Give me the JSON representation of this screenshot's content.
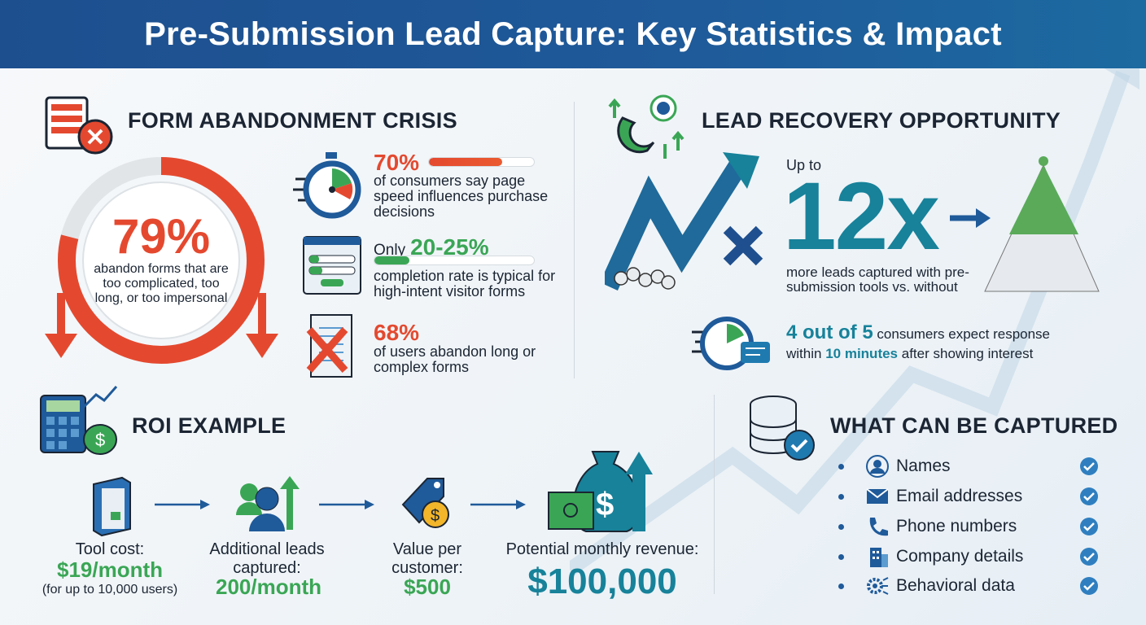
{
  "header": {
    "title": "Pre-Submission Lead Capture: Key Statistics & Impact"
  },
  "abandonment": {
    "title": "FORM ABANDONMENT CRISIS",
    "ring": {
      "value": "79%",
      "percent": 79,
      "text": "abandon forms that are too complicated, too long, or too impersonal"
    },
    "stats": [
      {
        "value": "70%",
        "percent": 70,
        "text": "of consumers say page speed influences purchase decisions",
        "icon": "stopwatch-icon"
      },
      {
        "prefix": "Only",
        "value": "20-25%",
        "percent": 22,
        "text": "completion rate is typical for high-intent visitor forms",
        "icon": "web-form-icon"
      },
      {
        "value": "68%",
        "text": "of users abandon long or complex forms",
        "icon": "crossed-document-icon"
      }
    ]
  },
  "recovery": {
    "title": "LEAD RECOVERY OPPORTUNITY",
    "up_to": "Up to",
    "multiplier": "12x",
    "text": "more leads captured with pre-submission tools vs. without",
    "response_value": "4 out of 5",
    "response_text_1": "consumers expect response",
    "response_text_2a": "within",
    "response_highlight": "10 minutes",
    "response_text_2b": "after showing interest"
  },
  "roi": {
    "title": "ROI EXAMPLE",
    "steps": [
      {
        "label": "Tool cost:",
        "value": "$19/month",
        "note": "(for up to 10,000 users)"
      },
      {
        "label": "Additional leads captured:",
        "value": "200/month"
      },
      {
        "label": "Value per customer:",
        "value": "$500"
      },
      {
        "label": "Potential monthly revenue:",
        "value": "$100,000"
      }
    ]
  },
  "capture": {
    "title": "WHAT CAN BE CAPTURED",
    "items": [
      {
        "label": "Names",
        "icon": "person-icon"
      },
      {
        "label": "Email addresses",
        "icon": "envelope-icon"
      },
      {
        "label": "Phone numbers",
        "icon": "phone-icon"
      },
      {
        "label": "Company details",
        "icon": "building-icon"
      },
      {
        "label": "Behavioral data",
        "icon": "gear-network-icon"
      }
    ]
  },
  "colors": {
    "header": "#1d4f8e",
    "red": "#e4492f",
    "green": "#3aa655",
    "teal": "#17829a",
    "navy": "#1f5a9a"
  }
}
